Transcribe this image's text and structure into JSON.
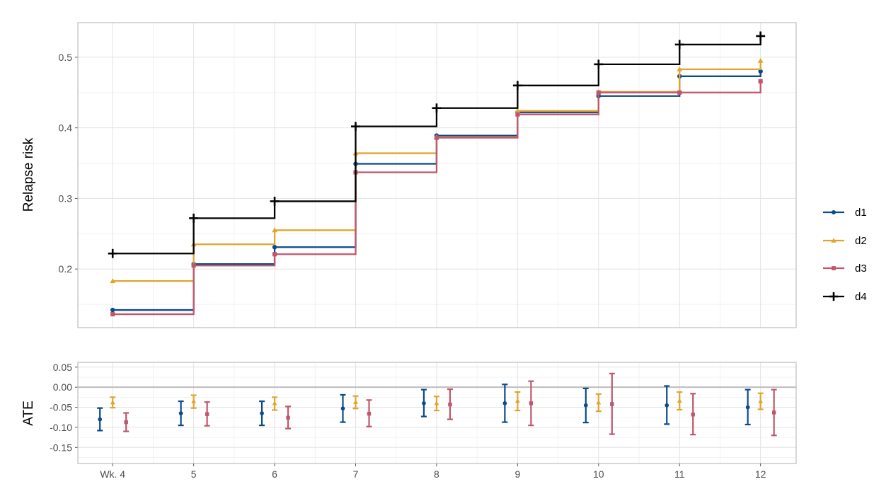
{
  "chart_data": [
    {
      "type": "line",
      "subtype": "step",
      "ylabel": "Relapse risk",
      "xlabel": "",
      "x": [
        4,
        5,
        6,
        7,
        8,
        9,
        10,
        11,
        12
      ],
      "x_tick_labels": [
        "Wk. 4",
        "5",
        "6",
        "7",
        "8",
        "9",
        "10",
        "11",
        "12"
      ],
      "xlim": [
        3.57,
        12.44
      ],
      "ylim": [
        0.117,
        0.549
      ],
      "y_ticks": [
        0.2,
        0.3,
        0.4,
        0.5
      ],
      "y_tick_labels": [
        "0.2",
        "0.3",
        "0.4",
        "0.5"
      ],
      "grid": true,
      "legend_position": "right",
      "series": [
        {
          "name": "d1",
          "color": "#0b4a8b",
          "marker": "circle",
          "values": [
            0.142,
            0.207,
            0.231,
            0.349,
            0.389,
            0.422,
            0.445,
            0.473,
            0.48
          ]
        },
        {
          "name": "d2",
          "color": "#e0a52e",
          "marker": "triangle",
          "values": [
            0.183,
            0.235,
            0.255,
            0.364,
            0.387,
            0.424,
            0.451,
            0.483,
            0.495
          ]
        },
        {
          "name": "d3",
          "color": "#c0566c",
          "marker": "square",
          "values": [
            0.136,
            0.205,
            0.221,
            0.337,
            0.386,
            0.419,
            0.45,
            0.45,
            0.466
          ]
        },
        {
          "name": "d4",
          "color": "#000000",
          "marker": "plus",
          "values": [
            0.222,
            0.272,
            0.296,
            0.402,
            0.428,
            0.46,
            0.49,
            0.518,
            0.53
          ]
        }
      ]
    },
    {
      "type": "scatter",
      "subtype": "errorbar",
      "ylabel": "ATE",
      "xlabel": "",
      "x": [
        4,
        5,
        6,
        7,
        8,
        9,
        10,
        11,
        12
      ],
      "x_tick_labels": [
        "Wk. 4",
        "5",
        "6",
        "7",
        "8",
        "9",
        "10",
        "11",
        "12"
      ],
      "xlim": [
        3.57,
        12.44
      ],
      "ylim": [
        -0.19,
        0.062
      ],
      "y_ticks": [
        0.05,
        0.0,
        -0.05,
        -0.1,
        -0.15
      ],
      "y_tick_labels": [
        "0.05",
        "0.00",
        "-0.05",
        "-0.10",
        "-0.15"
      ],
      "reference_line": 0,
      "grid": true,
      "series": [
        {
          "name": "d1",
          "color": "#0b4a8b",
          "marker": "circle",
          "values": [
            -0.08,
            -0.065,
            -0.065,
            -0.053,
            -0.04,
            -0.04,
            -0.045,
            -0.045,
            -0.05
          ],
          "lower": [
            -0.108,
            -0.095,
            -0.095,
            -0.087,
            -0.073,
            -0.087,
            -0.088,
            -0.092,
            -0.093
          ],
          "upper": [
            -0.052,
            -0.035,
            -0.035,
            -0.019,
            -0.006,
            0.007,
            -0.003,
            0.003,
            -0.006
          ]
        },
        {
          "name": "d2",
          "color": "#e0a52e",
          "marker": "triangle",
          "values": [
            -0.038,
            -0.035,
            -0.04,
            -0.037,
            -0.04,
            -0.034,
            -0.038,
            -0.034,
            -0.035
          ],
          "lower": [
            -0.051,
            -0.052,
            -0.057,
            -0.053,
            -0.058,
            -0.058,
            -0.06,
            -0.056,
            -0.055
          ],
          "upper": [
            -0.025,
            -0.02,
            -0.025,
            -0.022,
            -0.023,
            -0.012,
            -0.017,
            -0.012,
            -0.015
          ]
        },
        {
          "name": "d3",
          "color": "#c0566c",
          "marker": "square",
          "values": [
            -0.087,
            -0.067,
            -0.076,
            -0.066,
            -0.043,
            -0.04,
            -0.042,
            -0.068,
            -0.063
          ],
          "lower": [
            -0.11,
            -0.096,
            -0.103,
            -0.098,
            -0.08,
            -0.095,
            -0.117,
            -0.118,
            -0.12
          ],
          "upper": [
            -0.064,
            -0.037,
            -0.048,
            -0.032,
            -0.005,
            0.015,
            0.034,
            -0.016,
            -0.006
          ]
        }
      ]
    }
  ]
}
